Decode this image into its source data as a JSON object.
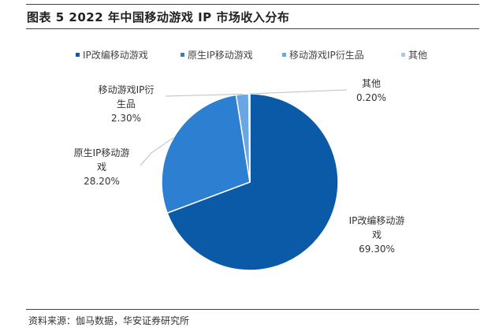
{
  "title": "图表 5 2022 年中国移动游戏 IP 市场收入分布",
  "source": "资料来源：伽马数据，华安证券研究所",
  "chart_data": {
    "type": "pie",
    "title": "",
    "series": [
      {
        "name": "IP改编移动游戏",
        "value": 69.3,
        "label_lines": [
          "IP改编移动游",
          "戏",
          "69.30%"
        ],
        "color": "#0b5aa7"
      },
      {
        "name": "原生IP移动游戏",
        "value": 28.2,
        "label_lines": [
          "原生IP移动游",
          "戏",
          "28.20%"
        ],
        "color": "#2d7fd2"
      },
      {
        "name": "移动游戏IP衍生品",
        "value": 2.3,
        "label_lines": [
          "移动游戏IP衍",
          "生品",
          "2.30%"
        ],
        "color": "#6aa6e3"
      },
      {
        "name": "其他",
        "value": 0.2,
        "label_lines": [
          "其他",
          "0.20%"
        ],
        "color": "#a9c9ef"
      }
    ],
    "legend_position": "top"
  }
}
